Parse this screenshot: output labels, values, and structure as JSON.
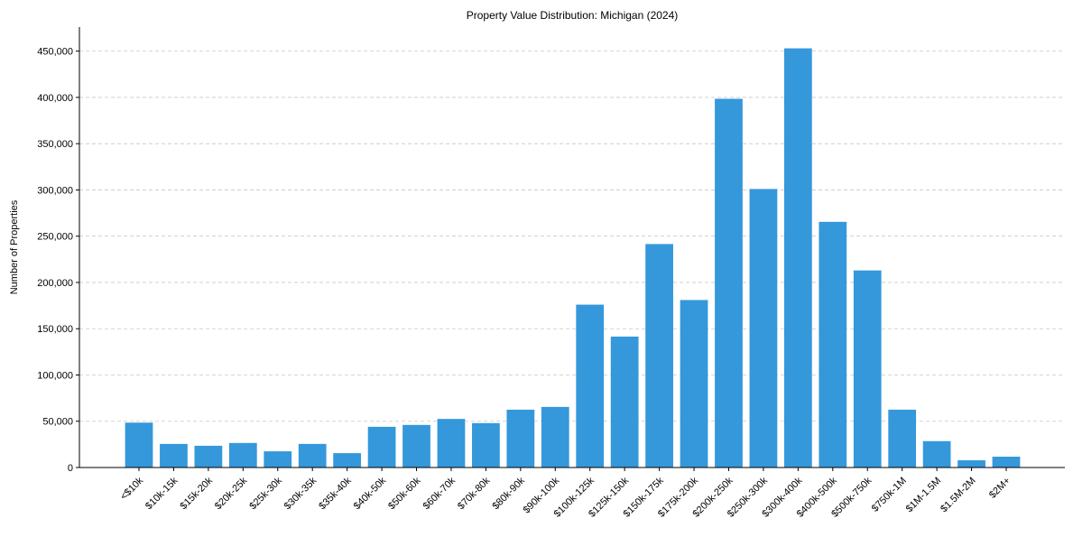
{
  "chart_data": {
    "type": "bar",
    "title": "Property Value Distribution: Michigan (2024)",
    "xlabel": "",
    "ylabel": "Number of Properties",
    "categories": [
      "<$10k",
      "$10k-15k",
      "$15k-20k",
      "$20k-25k",
      "$25k-30k",
      "$30k-35k",
      "$35k-40k",
      "$40k-50k",
      "$50k-60k",
      "$60k-70k",
      "$70k-80k",
      "$80k-90k",
      "$90k-100k",
      "$100k-125k",
      "$125k-150k",
      "$150k-175k",
      "$175k-200k",
      "$200k-250k",
      "$250k-300k",
      "$300k-400k",
      "$400k-500k",
      "$500k-750k",
      "$750k-1M",
      "$1M-1.5M",
      "$1.5M-2M",
      "$2M+"
    ],
    "values": [
      48500,
      25500,
      23500,
      26500,
      17500,
      25500,
      15500,
      44000,
      46000,
      52500,
      48000,
      62500,
      65500,
      176000,
      141500,
      241500,
      181000,
      398500,
      301000,
      453000,
      265500,
      213000,
      62500,
      28500,
      7800,
      11700
    ],
    "ylim": [
      0,
      476000
    ],
    "yticks": [
      0,
      50000,
      100000,
      150000,
      200000,
      250000,
      300000,
      350000,
      400000,
      450000
    ],
    "ytick_labels": [
      "0",
      "50,000",
      "100,000",
      "150,000",
      "200,000",
      "250,000",
      "300,000",
      "350,000",
      "400,000",
      "450,000"
    ],
    "grid": "y-dashed",
    "bar_color": "#3498db"
  }
}
